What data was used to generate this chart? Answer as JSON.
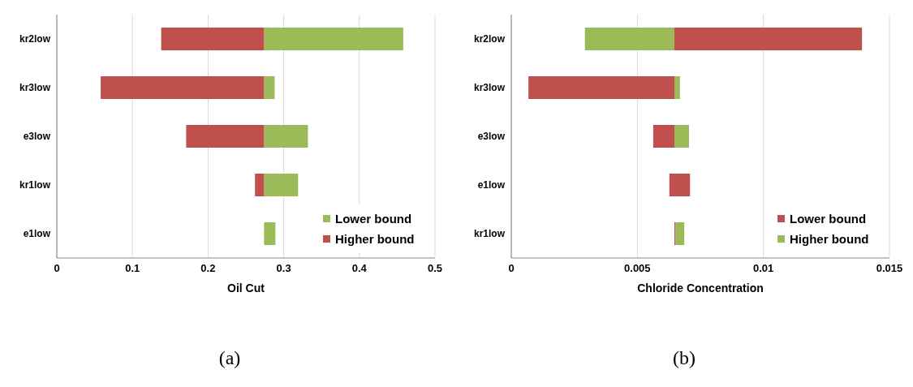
{
  "chart_data": [
    {
      "type": "bar",
      "orientation": "horizontal",
      "xlabel": "Oil Cut",
      "categories": [
        "kr2low",
        "kr3low",
        "e3low",
        "kr1low",
        "e1low"
      ],
      "series": [
        {
          "name": "Lower bound",
          "color": "#9bbb59",
          "base": [
            0.274,
            0.274,
            0.274,
            0.274,
            0.274
          ],
          "values": [
            0.184,
            0.014,
            0.058,
            0.045,
            0.015
          ]
        },
        {
          "name": "Higher bound",
          "color": "#c0504d",
          "base": [
            0.138,
            0.058,
            0.171,
            0.262,
            null
          ],
          "values": [
            0.136,
            0.216,
            0.103,
            0.012,
            null
          ]
        }
      ],
      "xlim": [
        0,
        0.5
      ],
      "xticks": [
        0,
        0.1,
        0.2,
        0.3,
        0.4,
        0.5
      ],
      "grid": "x",
      "legend": "bottom right",
      "annotations": [
        "(a)"
      ]
    },
    {
      "type": "bar",
      "orientation": "horizontal",
      "xlabel": "Chloride Concentration",
      "categories": [
        "kr2low",
        "kr3low",
        "e3low",
        "e1low",
        "kr1low"
      ],
      "series": [
        {
          "name": "Lower bound",
          "color": "#c0504d",
          "base": [
            0.00647,
            0.00068,
            0.00563,
            0.00627,
            0.00647
          ],
          "values": [
            0.00744,
            0.00579,
            0.00084,
            0.00082,
            5e-05
          ]
        },
        {
          "name": "Higher bound",
          "color": "#9bbb59",
          "base": [
            0.00292,
            0.00647,
            0.00647,
            null,
            0.00653
          ],
          "values": [
            0.00355,
            0.00022,
            0.00058,
            null,
            0.00033
          ]
        }
      ],
      "xlim": [
        0,
        0.015
      ],
      "xticks": [
        0,
        0.005,
        0.01,
        0.015
      ],
      "grid": "x",
      "legend": "bottom right",
      "annotations": [
        "(b)"
      ]
    }
  ]
}
